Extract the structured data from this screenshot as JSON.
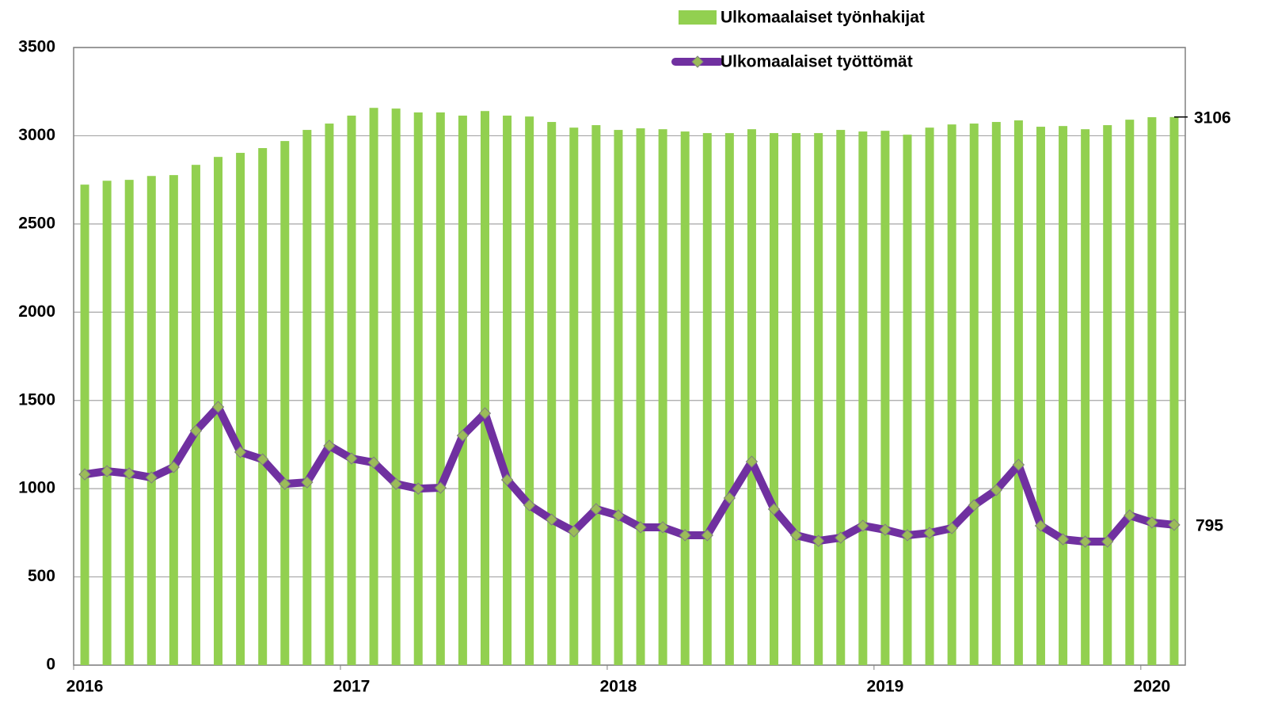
{
  "chart_data": {
    "type": "bar-line",
    "categories": [
      "2016",
      null,
      null,
      null,
      null,
      null,
      null,
      null,
      null,
      null,
      null,
      null,
      "2017",
      null,
      null,
      null,
      null,
      null,
      null,
      null,
      null,
      null,
      null,
      null,
      "2018",
      null,
      null,
      null,
      null,
      null,
      null,
      null,
      null,
      null,
      null,
      null,
      "2019",
      null,
      null,
      null,
      null,
      null,
      null,
      null,
      null,
      null,
      null,
      null,
      "2020",
      null
    ],
    "series": [
      {
        "name": "Ulkomaalaiset työnhakijat",
        "type": "bar",
        "color": "#92d050",
        "values": [
          2723,
          2745,
          2750,
          2772,
          2777,
          2835,
          2880,
          2903,
          2930,
          2970,
          3033,
          3069,
          3114,
          3158,
          3154,
          3132,
          3132,
          3114,
          3140,
          3114,
          3109,
          3078,
          3046,
          3060,
          3033,
          3042,
          3037,
          3024,
          3015,
          3015,
          3037,
          3015,
          3015,
          3015,
          3033,
          3024,
          3028,
          3006,
          3046,
          3064,
          3069,
          3078,
          3087,
          3051,
          3055,
          3037,
          3060,
          3091,
          3105,
          3106
        ]
      },
      {
        "name": "Ulkomaalaiset työttömät",
        "type": "line",
        "color": "#7030a0",
        "marker_color": "#9bbb59",
        "values": [
          1081,
          1099,
          1086,
          1063,
          1122,
          1328,
          1463,
          1207,
          1166,
          1027,
          1036,
          1243,
          1171,
          1148,
          1027,
          1000,
          1005,
          1301,
          1427,
          1050,
          906,
          825,
          758,
          884,
          848,
          781,
          781,
          736,
          736,
          947,
          1153,
          884,
          736,
          704,
          722,
          790,
          767,
          736,
          749,
          776,
          906,
          992,
          1135,
          790,
          713,
          700,
          700,
          848,
          808,
          795
        ]
      }
    ],
    "ylim": [
      0,
      3500
    ],
    "yticks": [
      0,
      500,
      1000,
      1500,
      2000,
      2500,
      3000,
      3500
    ],
    "grid": true
  }
}
